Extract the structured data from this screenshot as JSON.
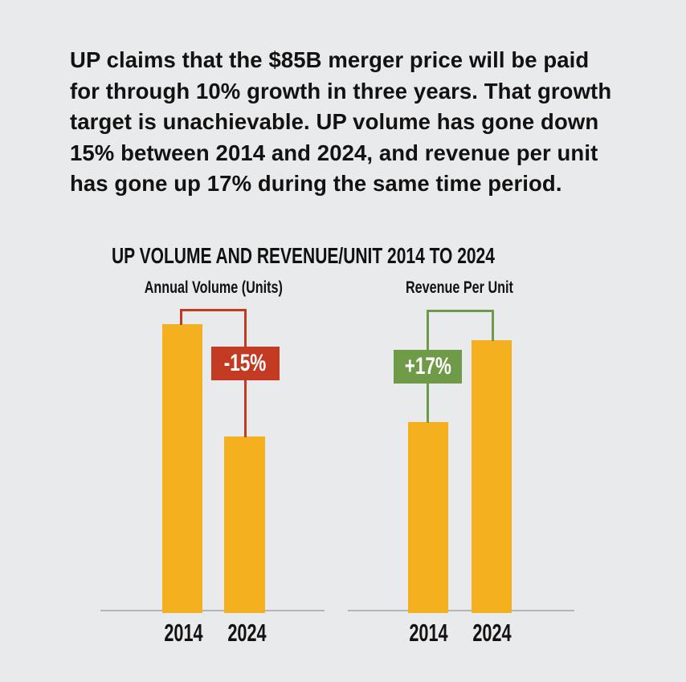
{
  "intro": {
    "lines": [
      "UP claims that the $85B merger price will be paid",
      "for through 10% growth in three years. That growth",
      "target is unachievable. UP volume has gone down",
      "15% between 2014 and 2024, and revenue per unit",
      "has gone up 17% during the same time period."
    ]
  },
  "charts": {
    "title": "UP VOLUME AND REVENUE/UNIT 2014 TO 2024",
    "left": {
      "subtitle": "Annual Volume (Units)",
      "badge": "-15%",
      "years": [
        "2014",
        "2024"
      ]
    },
    "right": {
      "subtitle": "Revenue Per Unit",
      "badge": "+17%",
      "years": [
        "2014",
        "2024"
      ]
    }
  },
  "chart_data": {
    "type": "bar",
    "title": "UP VOLUME AND REVENUE/UNIT 2014 TO 2024",
    "categories": [
      "2014",
      "2024"
    ],
    "series": [
      {
        "name": "Annual Volume (Units)",
        "values_relative": [
          100,
          61
        ],
        "change_label": "-15%",
        "annotation_color": "#c23a22"
      },
      {
        "name": "Revenue Per Unit",
        "values_relative": [
          100,
          143
        ],
        "change_label": "+17%",
        "annotation_color": "#6f9a48"
      }
    ],
    "bar_color": "#f4b01f",
    "xlabel": "",
    "ylabel": "",
    "layout": {
      "axis": "baseline-only",
      "grid": false,
      "legend": false,
      "note": "bar heights drawn for emphasis, not to labeled percent scale"
    }
  },
  "colors": {
    "background": "#e9eaec",
    "bar": "#f4b01f",
    "negative": "#c23a22",
    "positive": "#6f9a48",
    "text": "#121212",
    "baseline": "#b3b6b8"
  }
}
